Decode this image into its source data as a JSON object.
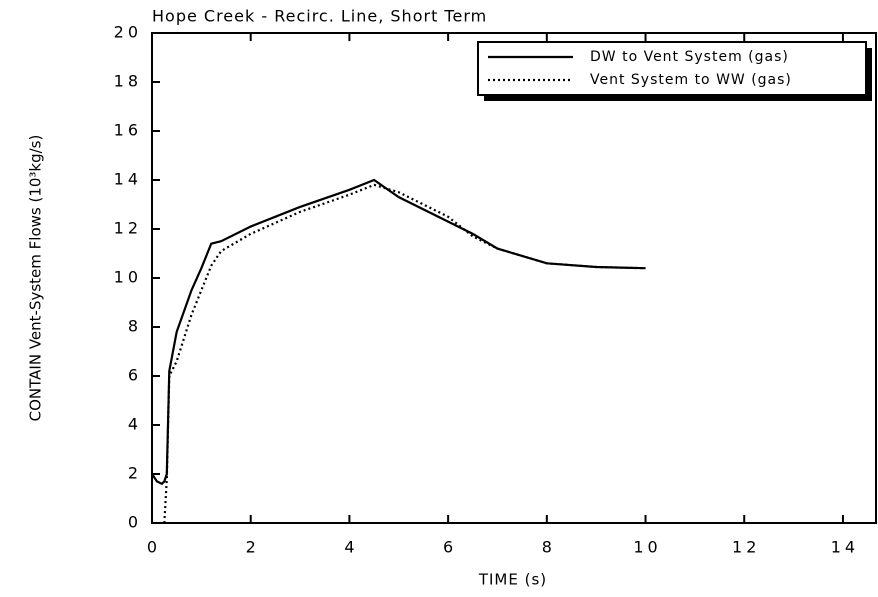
{
  "chart_data": {
    "type": "line",
    "title": "Hope Creek - Recirc. Line, Short Term",
    "xlabel": "TIME (s)",
    "ylabel": "CONTAIN Vent-System Flows (10³kg/s)",
    "x": [
      0,
      0.1,
      0.2,
      0.25,
      0.3,
      0.35,
      0.5,
      0.8,
      1,
      1.2,
      1.4,
      2,
      3,
      4,
      4.5,
      5,
      6,
      6.5,
      7,
      8,
      9,
      10
    ],
    "series": [
      {
        "name": "DW to Vent System (gas)",
        "color": "#000000",
        "style": "solid",
        "values": [
          2,
          1.7,
          1.6,
          1.7,
          2,
          6.2,
          7.8,
          9.5,
          10.4,
          11.4,
          11.5,
          12.1,
          12.9,
          13.6,
          14.0,
          13.3,
          12.3,
          11.8,
          11.2,
          10.6,
          10.45,
          10.4
        ]
      },
      {
        "name": "Vent System to WW (gas)",
        "color": "#000000",
        "style": "dotted",
        "values": [
          null,
          null,
          null,
          0,
          1.8,
          6,
          6.6,
          8.5,
          9.5,
          10.5,
          11.1,
          11.8,
          12.7,
          13.4,
          13.8,
          13.5,
          12.5,
          11.7,
          11.2,
          10.6,
          10.45,
          10.4
        ]
      }
    ],
    "xlim": [
      0,
      14.67
    ],
    "xticks": [
      0,
      2,
      4,
      6,
      8,
      10,
      12,
      14
    ],
    "ylim": [
      0,
      20
    ],
    "yticks": [
      0,
      2,
      4,
      6,
      8,
      10,
      12,
      14,
      16,
      18,
      20
    ],
    "legend": "upper right"
  }
}
